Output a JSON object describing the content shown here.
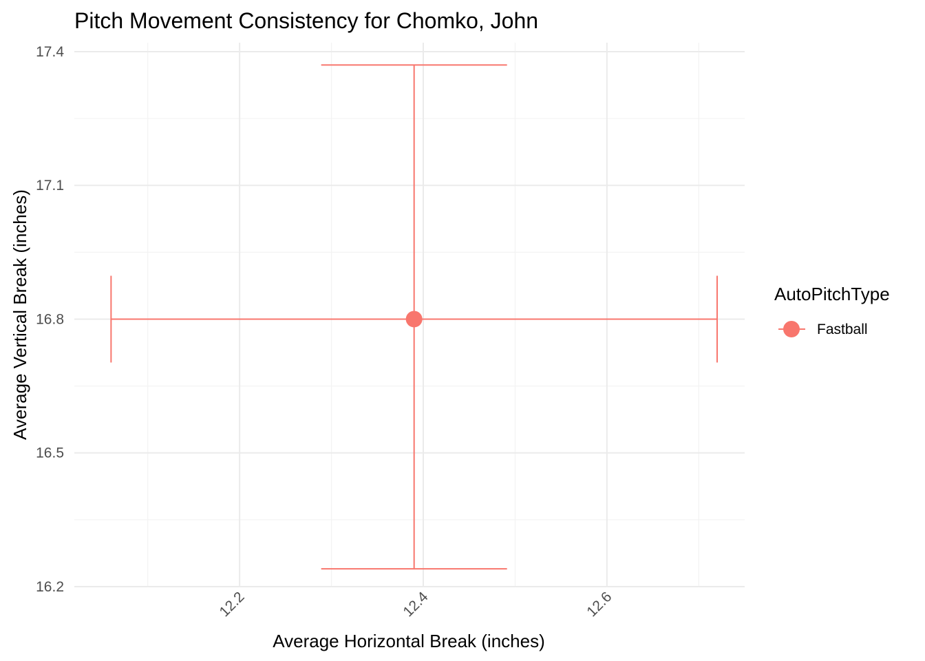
{
  "chart_data": {
    "type": "scatter",
    "title": "Pitch Movement Consistency for Chomko, John",
    "xlabel": "Average Horizontal Break (inches)",
    "ylabel": "Average Vertical Break (inches)",
    "xlim": [
      12.02,
      12.75
    ],
    "ylim": [
      16.2,
      17.42
    ],
    "x_ticks": [
      "12.2",
      "12.4",
      "12.6"
    ],
    "x_tick_values": [
      12.2,
      12.4,
      12.6
    ],
    "y_ticks": [
      "16.2",
      "16.5",
      "16.8",
      "17.1",
      "17.4"
    ],
    "y_tick_values": [
      16.2,
      16.5,
      16.8,
      17.1,
      17.4
    ],
    "grid": true,
    "legend": {
      "title": "AutoPitchType",
      "position": "right"
    },
    "series": [
      {
        "name": "Fastball",
        "color": "#F8766D",
        "points": [
          {
            "x": 12.39,
            "y": 16.8,
            "x_min": 12.06,
            "x_max": 12.72,
            "y_min": 16.24,
            "y_max": 17.37
          }
        ]
      }
    ]
  }
}
